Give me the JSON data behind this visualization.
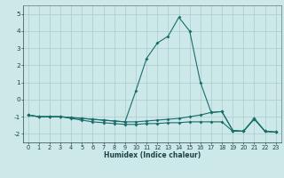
{
  "xlabel": "Humidex (Indice chaleur)",
  "bg_color": "#cce8e8",
  "grid_color": "#aacccc",
  "line_color": "#1a6e6a",
  "xlim": [
    -0.5,
    23.5
  ],
  "ylim": [
    -2.5,
    5.5
  ],
  "xticks": [
    0,
    1,
    2,
    3,
    4,
    5,
    6,
    7,
    8,
    9,
    10,
    11,
    12,
    13,
    14,
    15,
    16,
    17,
    18,
    19,
    20,
    21,
    22,
    23
  ],
  "yticks": [
    -2,
    -1,
    0,
    1,
    2,
    3,
    4,
    5
  ],
  "x_all": [
    0,
    1,
    2,
    3,
    4,
    5,
    6,
    7,
    8,
    9,
    10,
    11,
    12,
    13,
    14,
    15,
    16,
    17,
    18,
    19,
    20,
    21,
    22,
    23
  ],
  "line_a_y": [
    -0.9,
    -1.0,
    -1.0,
    -1.0,
    -1.05,
    -1.1,
    -1.15,
    -1.2,
    -1.25,
    -1.3,
    -1.3,
    -1.25,
    -1.2,
    -1.15,
    -1.1,
    -1.0,
    -0.9,
    -0.75,
    -0.7,
    -1.8,
    -1.85,
    -1.1,
    -1.85,
    -1.9
  ],
  "line_b_y": [
    -0.9,
    -1.0,
    -1.0,
    -1.0,
    -1.05,
    -1.1,
    -1.15,
    -1.2,
    -1.25,
    -1.3,
    0.5,
    2.4,
    3.3,
    3.7,
    4.8,
    4.0,
    1.0,
    -0.75,
    -0.7,
    -1.8,
    -1.85,
    -1.1,
    -1.85,
    -1.9
  ],
  "line_c_y": [
    -0.9,
    -1.0,
    -1.0,
    -1.0,
    -1.1,
    -1.2,
    -1.3,
    -1.35,
    -1.4,
    -1.45,
    -1.45,
    -1.4,
    -1.4,
    -1.35,
    -1.35,
    -1.3,
    -1.3,
    -1.3,
    -1.3,
    -1.85,
    -1.85,
    -1.15,
    -1.85,
    -1.9
  ],
  "marker_size": 2.0,
  "line_width": 0.8,
  "xlabel_fontsize": 5.5,
  "tick_fontsize": 4.8
}
